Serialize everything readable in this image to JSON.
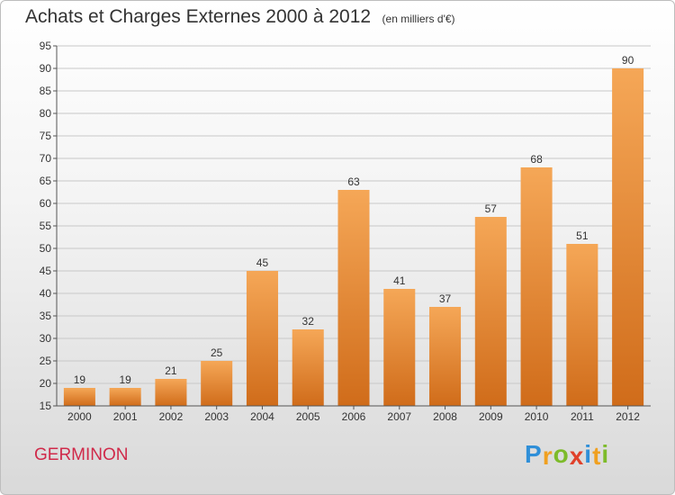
{
  "title": "Achats et Charges Externes 2000 à 2012",
  "unit": "(en milliers d'€)",
  "place": "GERMINON",
  "logo": {
    "letters": [
      "P",
      "r",
      "o",
      "x",
      "i",
      "t",
      "i"
    ],
    "colors": [
      "#2f8fd8",
      "#f0a020",
      "#7dbb2a",
      "#e0402a",
      "#2f8fd8",
      "#f0a020",
      "#7dbb2a"
    ]
  },
  "colors": {
    "bar_light": "#f5a757",
    "bar_dark": "#d06c1a",
    "axis": "#555555",
    "grid": "#c8c8c8"
  },
  "chart_data": {
    "type": "bar",
    "title": "Achats et Charges Externes 2000 à 2012",
    "xlabel": "",
    "ylabel": "",
    "categories": [
      "2000",
      "2001",
      "2002",
      "2003",
      "2004",
      "2005",
      "2006",
      "2007",
      "2008",
      "2009",
      "2010",
      "2011",
      "2012"
    ],
    "values": [
      19,
      19,
      21,
      25,
      45,
      32,
      63,
      41,
      37,
      57,
      68,
      51,
      90
    ],
    "ylim": [
      15,
      95
    ],
    "yticks": [
      15,
      20,
      25,
      30,
      35,
      40,
      45,
      50,
      55,
      60,
      65,
      70,
      75,
      80,
      85,
      90,
      95
    ],
    "grid": true
  }
}
